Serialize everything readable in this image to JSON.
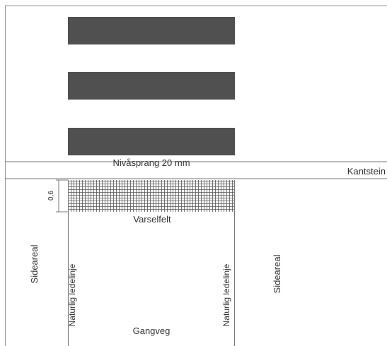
{
  "labels": {
    "level_difference": "Nivåsprang 20 mm",
    "curb": "Kantstein",
    "dimension": "0,6",
    "warning_field": "Varselfelt",
    "side_area_left": "Sideareal",
    "side_area_right": "Sideareal",
    "natural_guideline_left": "Naturlig ledelinje",
    "natural_guideline_right": "Naturlig ledelinje",
    "walkway": "Gangveg"
  },
  "colors": {
    "stripe": "#505050",
    "line": "#666666",
    "hatch": "#555555",
    "text": "#333333"
  }
}
